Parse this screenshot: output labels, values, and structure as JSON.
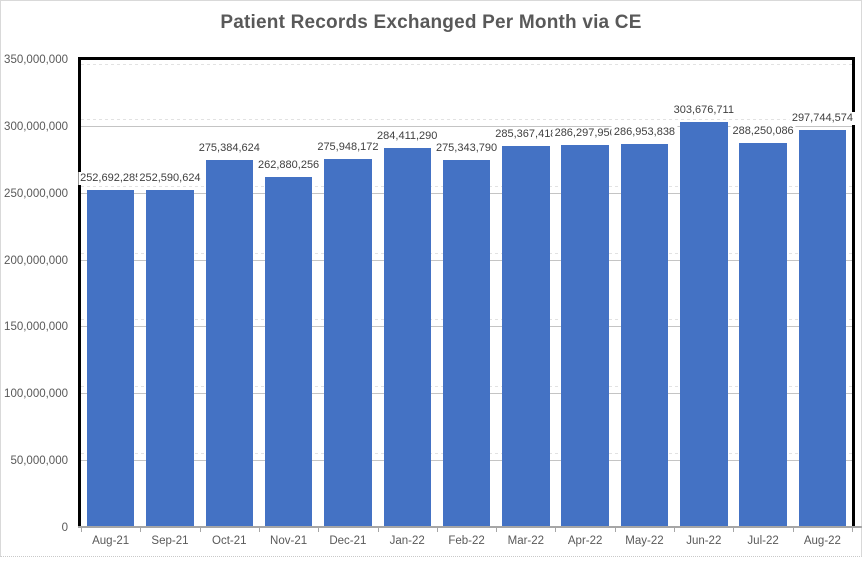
{
  "chart_data": {
    "type": "bar",
    "title": "Patient Records Exchanged Per Month via CE",
    "categories": [
      "Aug-21",
      "Sep-21",
      "Oct-21",
      "Nov-21",
      "Dec-21",
      "Jan-22",
      "Feb-22",
      "Mar-22",
      "Apr-22",
      "May-22",
      "Jun-22",
      "Jul-22",
      "Aug-22"
    ],
    "values": [
      252692285,
      252590624,
      275384624,
      262880256,
      275948172,
      284411290,
      275343790,
      285367418,
      286297950,
      286953838,
      303676711,
      288250086,
      297744574
    ],
    "data_labels": [
      "252,692,285",
      "252,590,624",
      "275,384,624",
      "262,880,256",
      "275,948,172",
      "284,411,290",
      "275,343,790",
      "285,367,418",
      "286,297,950",
      "286,953,838",
      "303,676,711",
      "288,250,086",
      "297,744,574"
    ],
    "xlabel": "",
    "ylabel": "",
    "ylim": [
      0,
      350000000
    ],
    "ytick_values": [
      0,
      50000000,
      100000000,
      150000000,
      200000000,
      250000000,
      300000000,
      350000000
    ],
    "ytick_labels": [
      "0",
      "50,000,000",
      "100,000,000",
      "150,000,000",
      "200,000,000",
      "250,000,000",
      "300,000,000",
      "350,000,000"
    ],
    "grid": "horizontal-major",
    "legend": "none",
    "bar_color": "#4472C4",
    "gridline_color": "#C4C4C4",
    "axis_line_color": "#000000",
    "category_axis_line_color": "#A6A6A6",
    "title_color": "#595959",
    "label_color": "#404040",
    "tick_label_color": "#595959"
  }
}
